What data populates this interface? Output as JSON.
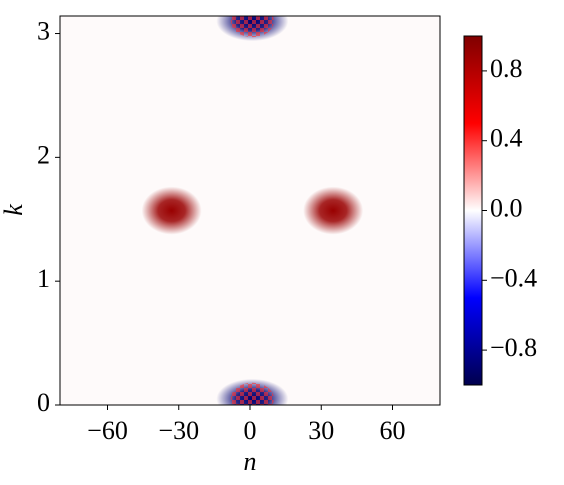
{
  "chart_data": {
    "type": "heatmap",
    "xlabel": "n",
    "ylabel": "k",
    "xlim": [
      -80,
      80
    ],
    "ylim": [
      0,
      3.14159
    ],
    "xticks": [
      {
        "value": -60,
        "label": "−60"
      },
      {
        "value": -30,
        "label": "−30"
      },
      0,
      30,
      60
    ],
    "yticks": [
      0,
      1,
      2,
      3
    ],
    "colormap": "seismic",
    "clim": [
      -1,
      1
    ],
    "cticks": [
      {
        "value": -0.8,
        "label": "−0.8"
      },
      {
        "value": -0.4,
        "label": "−0.4"
      },
      {
        "value": 0,
        "label": "0.0"
      },
      0.4,
      0.8
    ],
    "peaks": [
      {
        "n": -33,
        "k": 1.57,
        "value": 0.9
      },
      {
        "n": 35,
        "k": 1.57,
        "value": 0.9
      },
      {
        "n": 1,
        "k": 0.05,
        "value": -0.9
      },
      {
        "n": 1,
        "k": 3.1,
        "value": -0.9
      }
    ]
  }
}
